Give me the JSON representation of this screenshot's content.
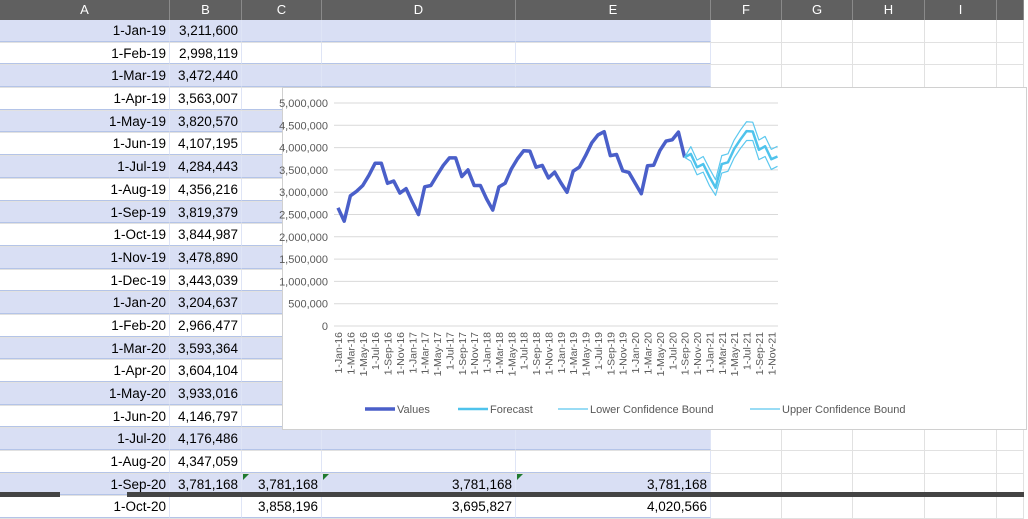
{
  "columns": [
    "A",
    "B",
    "C",
    "D",
    "E",
    "F",
    "G",
    "H",
    "I"
  ],
  "rows": [
    {
      "a": "1-Jan-19",
      "b": "3,211,600"
    },
    {
      "a": "1-Feb-19",
      "b": "2,998,119"
    },
    {
      "a": "1-Mar-19",
      "b": "3,472,440"
    },
    {
      "a": "1-Apr-19",
      "b": "3,563,007"
    },
    {
      "a": "1-May-19",
      "b": "3,820,570"
    },
    {
      "a": "1-Jun-19",
      "b": "4,107,195"
    },
    {
      "a": "1-Jul-19",
      "b": "4,284,443"
    },
    {
      "a": "1-Aug-19",
      "b": "4,356,216"
    },
    {
      "a": "1-Sep-19",
      "b": "3,819,379"
    },
    {
      "a": "1-Oct-19",
      "b": "3,844,987"
    },
    {
      "a": "1-Nov-19",
      "b": "3,478,890"
    },
    {
      "a": "1-Dec-19",
      "b": "3,443,039"
    },
    {
      "a": "1-Jan-20",
      "b": "3,204,637"
    },
    {
      "a": "1-Feb-20",
      "b": "2,966,477"
    },
    {
      "a": "1-Mar-20",
      "b": "3,593,364"
    },
    {
      "a": "1-Apr-20",
      "b": "3,604,104"
    },
    {
      "a": "1-May-20",
      "b": "3,933,016"
    },
    {
      "a": "1-Jun-20",
      "b": "4,146,797"
    },
    {
      "a": "1-Jul-20",
      "b": "4,176,486"
    },
    {
      "a": "1-Aug-20",
      "b": "4,347,059"
    },
    {
      "a": "1-Sep-20",
      "b": "3,781,168",
      "c": "3,781,168",
      "d": "3,781,168",
      "e": "3,781,168"
    },
    {
      "a": "1-Oct-20",
      "b": "",
      "c": "3,858,196",
      "d": "3,695,827",
      "e": "4,020,566"
    }
  ],
  "chart_data": {
    "type": "line",
    "x_start": "1-Jan-16",
    "x_end": "1-Dec-21",
    "x_tick_labels": [
      "1-Jan-16",
      "1-Mar-16",
      "1-May-16",
      "1-Jul-16",
      "1-Sep-16",
      "1-Nov-16",
      "1-Jan-17",
      "1-Mar-17",
      "1-May-17",
      "1-Jul-17",
      "1-Sep-17",
      "1-Nov-17",
      "1-Jan-18",
      "1-Mar-18",
      "1-May-18",
      "1-Jul-18",
      "1-Sep-18",
      "1-Nov-18",
      "1-Jan-19",
      "1-Mar-19",
      "1-May-19",
      "1-Jul-19",
      "1-Sep-19",
      "1-Nov-19",
      "1-Jan-20",
      "1-Mar-20",
      "1-May-20",
      "1-Jul-20",
      "1-Sep-20",
      "1-Nov-20",
      "1-Jan-21",
      "1-Mar-21",
      "1-May-21",
      "1-Jul-21",
      "1-Sep-21",
      "1-Nov-21"
    ],
    "y_ticks": [
      "0",
      "500,000",
      "1,000,000",
      "1,500,000",
      "2,000,000",
      "2,500,000",
      "3,000,000",
      "3,500,000",
      "4,000,000",
      "4,500,000",
      "5,000,000"
    ],
    "ylim": [
      0,
      5000000
    ],
    "grid": true,
    "legend": "bottom",
    "series": [
      {
        "name": "Values",
        "color": "#4a5fc9",
        "start_month": 0,
        "values": [
          2650000,
          2350000,
          2920000,
          3020000,
          3150000,
          3380000,
          3650000,
          3650000,
          3200000,
          3250000,
          2980000,
          3080000,
          2780000,
          2500000,
          3120000,
          3150000,
          3380000,
          3600000,
          3770000,
          3770000,
          3350000,
          3500000,
          3150000,
          3150000,
          2850000,
          2600000,
          3120000,
          3200000,
          3520000,
          3750000,
          3930000,
          3920000,
          3560000,
          3600000,
          3320000,
          3450000,
          3211600,
          2998119,
          3472440,
          3563007,
          3820570,
          4107195,
          4284443,
          4356216,
          3819379,
          3844987,
          3478890,
          3443039,
          3204637,
          2966477,
          3593364,
          3604104,
          3933016,
          4146797,
          4176486,
          4347059,
          3781168
        ]
      },
      {
        "name": "Forecast",
        "color": "#4fc3ec",
        "start_month": 56,
        "values": [
          3781168,
          3858196,
          3560000,
          3630000,
          3350000,
          3100000,
          3630000,
          3670000,
          3970000,
          4180000,
          4370000,
          4360000,
          3950000,
          4030000,
          3740000,
          3800000
        ]
      },
      {
        "name": "Lower Confidence Bound",
        "color": "#5cc8ef",
        "start_month": 56,
        "values": [
          3781168,
          3695827,
          3390000,
          3450000,
          3150000,
          2930000,
          3430000,
          3470000,
          3770000,
          3980000,
          4160000,
          4160000,
          3730000,
          3800000,
          3510000,
          3580000
        ]
      },
      {
        "name": "Upper Confidence Bound",
        "color": "#5cc8ef",
        "start_month": 56,
        "values": [
          3781168,
          4020566,
          3720000,
          3800000,
          3530000,
          3280000,
          3820000,
          3860000,
          4170000,
          4390000,
          4580000,
          4570000,
          4170000,
          4250000,
          3960000,
          4030000
        ]
      }
    ]
  }
}
